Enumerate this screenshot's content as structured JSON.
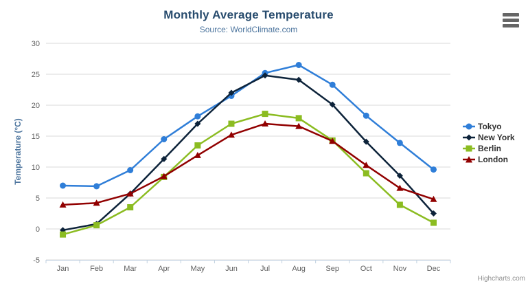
{
  "chart": {
    "credits_label": "Highcharts.com",
    "context_menu_icon": "hamburger-menu-icon"
  },
  "palette": {
    "title_text": "#274b6d",
    "subtitle_text": "#4d759e",
    "axis_label": "#606060",
    "axis_title": "#4d759e",
    "axis_line": "#c0d0e0",
    "grid_line": "#d8d8d8",
    "legend_text": "#333333",
    "credits_text": "#909090",
    "menu_icon": "#666666"
  },
  "chart_data": {
    "type": "line",
    "title": "Monthly Average Temperature",
    "subtitle": "Source: WorldClimate.com",
    "categories": [
      "Jan",
      "Feb",
      "Mar",
      "Apr",
      "May",
      "Jun",
      "Jul",
      "Aug",
      "Sep",
      "Oct",
      "Nov",
      "Dec"
    ],
    "xlabel": "",
    "ylabel": "Temperature (°C)",
    "ylim": [
      -5,
      30
    ],
    "ytick_interval": 5,
    "grid": true,
    "legend_position": "right",
    "series": [
      {
        "name": "Tokyo",
        "color": "#2f7ed8",
        "symbol": "circle",
        "values": [
          7.0,
          6.9,
          9.5,
          14.5,
          18.2,
          21.5,
          25.2,
          26.5,
          23.3,
          18.3,
          13.9,
          9.6
        ]
      },
      {
        "name": "New York",
        "color": "#0d233a",
        "symbol": "diamond",
        "values": [
          -0.2,
          0.8,
          5.7,
          11.3,
          17.0,
          22.0,
          24.8,
          24.1,
          20.1,
          14.1,
          8.6,
          2.5
        ]
      },
      {
        "name": "Berlin",
        "color": "#8bbc21",
        "symbol": "square",
        "values": [
          -0.9,
          0.6,
          3.5,
          8.4,
          13.5,
          17.0,
          18.6,
          17.9,
          14.3,
          9.0,
          3.9,
          1.0
        ]
      },
      {
        "name": "London",
        "color": "#910000",
        "symbol": "triangle",
        "values": [
          3.9,
          4.2,
          5.7,
          8.5,
          11.9,
          15.2,
          17.0,
          16.6,
          14.2,
          10.3,
          6.6,
          4.8
        ]
      }
    ]
  }
}
